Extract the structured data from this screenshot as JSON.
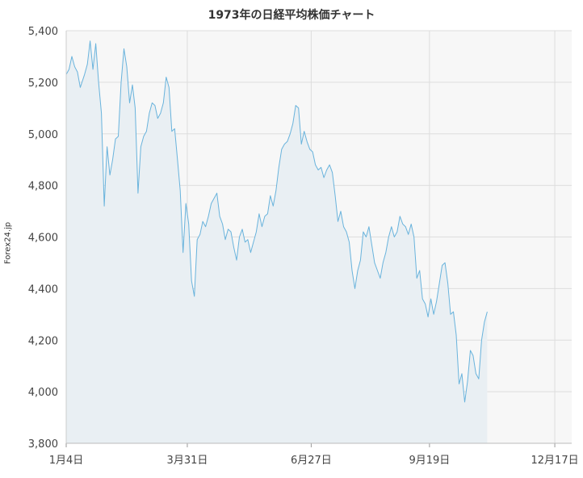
{
  "chart_data": {
    "type": "area",
    "title": "1973年の日経平均株価チャート",
    "ylabel": "Forex24.jp",
    "xlabel": "",
    "ylim": [
      3800,
      5400
    ],
    "yticks": [
      3800,
      4000,
      4200,
      4400,
      4600,
      4800,
      5000,
      5200,
      5400
    ],
    "ytick_labels": [
      "3,800",
      "4,000",
      "4,200",
      "4,400",
      "4,600",
      "4,800",
      "5,000",
      "5,200",
      "5,400"
    ],
    "xticks": [
      {
        "label": "1月4日",
        "day": 4
      },
      {
        "label": "3月31日",
        "day": 90
      },
      {
        "label": "6月27日",
        "day": 178
      },
      {
        "label": "9月19日",
        "day": 262
      },
      {
        "label": "12月17日",
        "day": 351
      }
    ],
    "xlim_day": [
      4,
      363
    ],
    "grid": true,
    "colors": {
      "line": "#69b3dc",
      "fill": "#e9eff3",
      "plot_bg": "#f7f7f7",
      "grid": "#dddddd"
    },
    "series": [
      {
        "name": "",
        "points": [
          [
            4,
            5230
          ],
          [
            6,
            5250
          ],
          [
            8,
            5300
          ],
          [
            10,
            5260
          ],
          [
            12,
            5240
          ],
          [
            14,
            5180
          ],
          [
            17,
            5230
          ],
          [
            19,
            5270
          ],
          [
            21,
            5360
          ],
          [
            23,
            5250
          ],
          [
            25,
            5350
          ],
          [
            27,
            5200
          ],
          [
            29,
            5080
          ],
          [
            31,
            4720
          ],
          [
            33,
            4950
          ],
          [
            35,
            4840
          ],
          [
            37,
            4900
          ],
          [
            39,
            4980
          ],
          [
            41,
            4990
          ],
          [
            43,
            5200
          ],
          [
            45,
            5330
          ],
          [
            47,
            5260
          ],
          [
            49,
            5120
          ],
          [
            51,
            5190
          ],
          [
            53,
            5100
          ],
          [
            55,
            4770
          ],
          [
            57,
            4950
          ],
          [
            59,
            4990
          ],
          [
            61,
            5010
          ],
          [
            63,
            5080
          ],
          [
            65,
            5120
          ],
          [
            67,
            5110
          ],
          [
            69,
            5060
          ],
          [
            71,
            5080
          ],
          [
            73,
            5120
          ],
          [
            75,
            5220
          ],
          [
            77,
            5180
          ],
          [
            79,
            5010
          ],
          [
            81,
            5020
          ],
          [
            83,
            4900
          ],
          [
            85,
            4780
          ],
          [
            87,
            4540
          ],
          [
            89,
            4730
          ],
          [
            91,
            4650
          ],
          [
            93,
            4430
          ],
          [
            95,
            4370
          ],
          [
            97,
            4590
          ],
          [
            99,
            4610
          ],
          [
            101,
            4660
          ],
          [
            103,
            4640
          ],
          [
            105,
            4680
          ],
          [
            107,
            4730
          ],
          [
            109,
            4750
          ],
          [
            111,
            4770
          ],
          [
            113,
            4680
          ],
          [
            115,
            4650
          ],
          [
            117,
            4590
          ],
          [
            119,
            4630
          ],
          [
            121,
            4620
          ],
          [
            123,
            4560
          ],
          [
            125,
            4510
          ],
          [
            127,
            4600
          ],
          [
            129,
            4630
          ],
          [
            131,
            4580
          ],
          [
            133,
            4590
          ],
          [
            135,
            4540
          ],
          [
            137,
            4580
          ],
          [
            139,
            4620
          ],
          [
            141,
            4690
          ],
          [
            143,
            4640
          ],
          [
            145,
            4680
          ],
          [
            147,
            4690
          ],
          [
            149,
            4760
          ],
          [
            151,
            4720
          ],
          [
            153,
            4780
          ],
          [
            155,
            4870
          ],
          [
            157,
            4940
          ],
          [
            159,
            4960
          ],
          [
            161,
            4970
          ],
          [
            163,
            5000
          ],
          [
            165,
            5040
          ],
          [
            167,
            5110
          ],
          [
            169,
            5100
          ],
          [
            171,
            4960
          ],
          [
            173,
            5010
          ],
          [
            175,
            4970
          ],
          [
            177,
            4940
          ],
          [
            179,
            4930
          ],
          [
            181,
            4880
          ],
          [
            183,
            4860
          ],
          [
            185,
            4870
          ],
          [
            187,
            4830
          ],
          [
            189,
            4860
          ],
          [
            191,
            4880
          ],
          [
            193,
            4850
          ],
          [
            195,
            4760
          ],
          [
            197,
            4660
          ],
          [
            199,
            4700
          ],
          [
            201,
            4640
          ],
          [
            203,
            4620
          ],
          [
            205,
            4580
          ],
          [
            207,
            4470
          ],
          [
            209,
            4400
          ],
          [
            211,
            4470
          ],
          [
            213,
            4510
          ],
          [
            215,
            4620
          ],
          [
            217,
            4600
          ],
          [
            219,
            4640
          ],
          [
            221,
            4570
          ],
          [
            223,
            4500
          ],
          [
            225,
            4470
          ],
          [
            227,
            4440
          ],
          [
            229,
            4500
          ],
          [
            231,
            4540
          ],
          [
            233,
            4600
          ],
          [
            235,
            4640
          ],
          [
            237,
            4600
          ],
          [
            239,
            4620
          ],
          [
            241,
            4680
          ],
          [
            243,
            4650
          ],
          [
            245,
            4640
          ],
          [
            247,
            4610
          ],
          [
            249,
            4650
          ],
          [
            251,
            4600
          ],
          [
            253,
            4440
          ],
          [
            255,
            4470
          ],
          [
            257,
            4360
          ],
          [
            259,
            4340
          ],
          [
            261,
            4290
          ],
          [
            263,
            4360
          ],
          [
            265,
            4300
          ],
          [
            267,
            4350
          ],
          [
            269,
            4420
          ],
          [
            271,
            4490
          ],
          [
            273,
            4500
          ],
          [
            275,
            4420
          ],
          [
            277,
            4300
          ],
          [
            279,
            4310
          ],
          [
            281,
            4220
          ],
          [
            283,
            4030
          ],
          [
            285,
            4070
          ],
          [
            287,
            3960
          ],
          [
            289,
            4040
          ],
          [
            291,
            4160
          ],
          [
            293,
            4140
          ],
          [
            295,
            4070
          ],
          [
            297,
            4050
          ],
          [
            299,
            4200
          ],
          [
            301,
            4270
          ],
          [
            303,
            4310
          ]
        ]
      }
    ]
  }
}
